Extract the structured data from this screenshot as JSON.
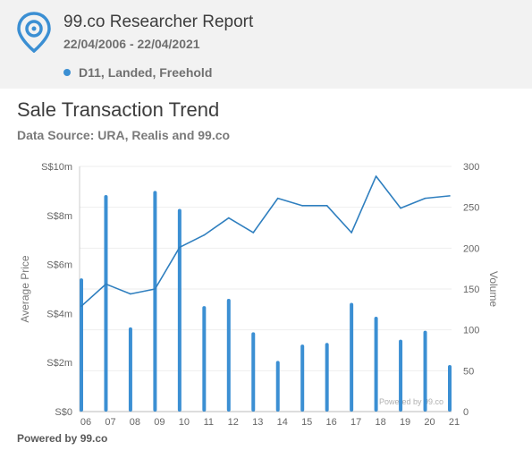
{
  "header": {
    "title": "99.co Researcher Report",
    "date_range": "22/04/2006 - 22/04/2021",
    "filter": "D11, Landed, Freehold",
    "filter_color": "#3b8fd3",
    "logo_icon": "map-pin-icon"
  },
  "section": {
    "title": "Sale Transaction Trend",
    "source": "Data Source: URA, Realis and 99.co"
  },
  "chart_data": {
    "type": "bar+line",
    "categories": [
      "06",
      "07",
      "08",
      "09",
      "10",
      "11",
      "12",
      "13",
      "14",
      "15",
      "16",
      "17",
      "18",
      "19",
      "20",
      "21"
    ],
    "series": [
      {
        "type": "bar",
        "axis": "right",
        "color": "#3b8fd3",
        "values": [
          163,
          265,
          103,
          270,
          248,
          129,
          138,
          97,
          62,
          82,
          84,
          133,
          116,
          88,
          99,
          57
        ]
      },
      {
        "type": "line",
        "axis": "left",
        "color": "#2f7fbf",
        "values": [
          4.3,
          5.2,
          4.8,
          5.0,
          6.7,
          7.2,
          7.9,
          7.3,
          8.7,
          8.4,
          8.4,
          7.3,
          9.6,
          8.3,
          8.7,
          8.8
        ]
      }
    ],
    "ylabel": "Average Price",
    "y2label": "Volume",
    "ylim": [
      0,
      10
    ],
    "y2lim": [
      0,
      300
    ],
    "yticks": [
      "S$0",
      "S$2m",
      "S$4m",
      "S$6m",
      "S$8m",
      "S$10m"
    ],
    "y2ticks": [
      "0",
      "50",
      "100",
      "150",
      "200",
      "250",
      "300"
    ],
    "watermark": "Powered by 99.co",
    "grid": true,
    "legend": "none"
  },
  "footer": {
    "text": "Powered by 99.co"
  }
}
